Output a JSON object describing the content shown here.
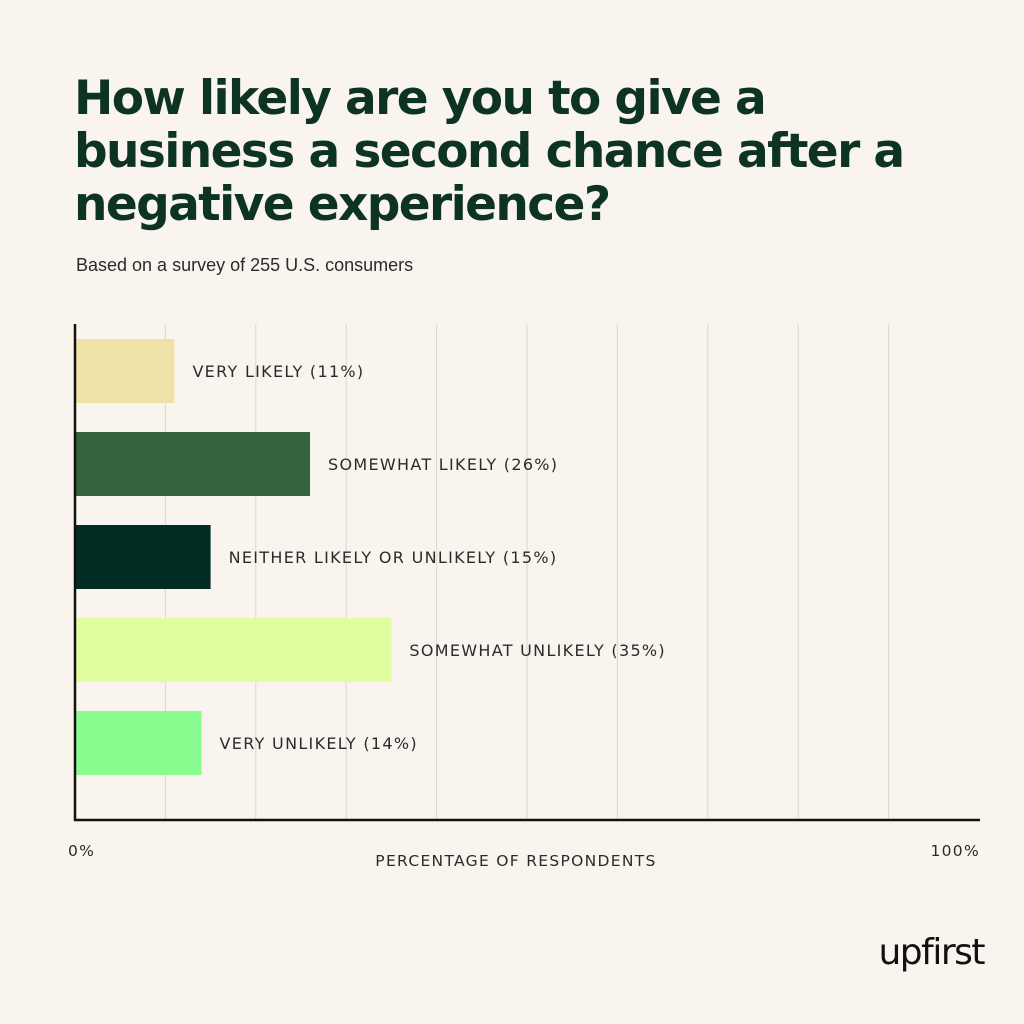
{
  "header": {
    "title": "How likely are you to give a business a second chance after a negative experience?",
    "subtitle": "Based on a survey of 255 U.S. consumers"
  },
  "brand": {
    "logo_text": "upfirst"
  },
  "chart_data": {
    "type": "bar",
    "orientation": "horizontal",
    "categories": [
      "VERY LIKELY (11%)",
      "SOMEWHAT LIKELY (26%)",
      "NEITHER LIKELY OR UNLIKELY (15%)",
      "SOMEWHAT UNLIKELY (35%)",
      "VERY UNLIKELY (14%)"
    ],
    "values": [
      11,
      26,
      15,
      35,
      14
    ],
    "colors": [
      "#efe2a9",
      "#35643c",
      "#032c24",
      "#e0fd9f",
      "#89fc8f"
    ],
    "xlabel": "PERCENTAGE OF RESPONDENTS",
    "xlim": [
      0,
      100
    ],
    "x_tick_labels": [
      "0%",
      "100%"
    ],
    "grid": true,
    "legend": "none"
  }
}
